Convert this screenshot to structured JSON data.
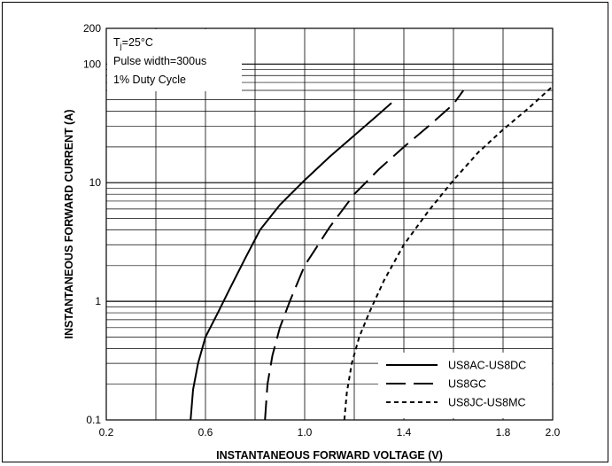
{
  "chart_data": {
    "type": "line",
    "title": "",
    "xlabel": "INSTANTANEOUS FORWARD VOLTAGE (V)",
    "ylabel": "INSTANTANEOUS FORWARD CURRENT (A)",
    "xlim": [
      0.2,
      2.0
    ],
    "ylim": [
      0.1,
      200
    ],
    "yscale": "log",
    "grid": true,
    "legend_position": "bottom-right",
    "x_ticks": [
      "0.2",
      "0.6",
      "1.0",
      "1.4",
      "1.8",
      "2.0"
    ],
    "y_ticks": [
      "0.1",
      "1",
      "10",
      "100",
      "200"
    ],
    "annotation": {
      "line1_main": "T",
      "line1_sub": "j",
      "line1_rest": "=25°C",
      "line2": "Pulse width=300us",
      "line3": "1% Duty Cycle"
    },
    "series": [
      {
        "name": "US8AC-US8DC",
        "dash": "solid",
        "x": [
          0.54,
          0.55,
          0.57,
          0.6,
          0.65,
          0.7,
          0.76,
          0.82,
          0.9,
          1.0,
          1.1,
          1.2,
          1.3,
          1.35
        ],
        "y": [
          0.1,
          0.18,
          0.3,
          0.5,
          0.8,
          1.3,
          2.3,
          4.0,
          6.5,
          10.5,
          16.5,
          25,
          38,
          47
        ]
      },
      {
        "name": "US8GC",
        "dash": "longdash",
        "x": [
          0.84,
          0.85,
          0.87,
          0.9,
          0.94,
          1.0,
          1.1,
          1.2,
          1.3,
          1.4,
          1.5,
          1.6,
          1.64
        ],
        "y": [
          0.1,
          0.2,
          0.35,
          0.6,
          1.0,
          2.0,
          4.2,
          8.0,
          13.0,
          20,
          30,
          46,
          60
        ]
      },
      {
        "name": "US8JC-US8MC",
        "dash": "shortdash",
        "x": [
          1.16,
          1.17,
          1.19,
          1.22,
          1.26,
          1.32,
          1.4,
          1.5,
          1.6,
          1.7,
          1.8,
          1.9,
          2.0
        ],
        "y": [
          0.1,
          0.17,
          0.3,
          0.5,
          0.8,
          1.5,
          3.0,
          5.8,
          10.5,
          18,
          28,
          42,
          65
        ]
      }
    ]
  }
}
